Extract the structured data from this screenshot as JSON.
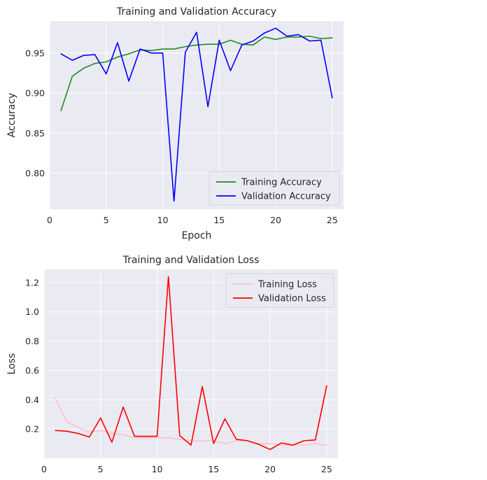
{
  "chart_data": [
    {
      "type": "line",
      "title": "Training and Validation Accuracy",
      "xlabel": "Epoch",
      "ylabel": "Accuracy",
      "xlim": [
        0,
        26
      ],
      "ylim": [
        0.755,
        0.99
      ],
      "xticks": [
        0,
        5,
        10,
        15,
        20,
        25
      ],
      "yticks": [
        0.8,
        0.85,
        0.9,
        0.95
      ],
      "ytick_labels": [
        "0.80",
        "0.85",
        "0.90",
        "0.95"
      ],
      "grid": true,
      "legend_position": "lower-right",
      "x": [
        1,
        2,
        3,
        4,
        5,
        6,
        7,
        8,
        9,
        10,
        11,
        12,
        13,
        14,
        15,
        16,
        17,
        18,
        19,
        20,
        21,
        22,
        23,
        24,
        25
      ],
      "series": [
        {
          "name": "Training Accuracy",
          "color": "#228b22",
          "values": [
            0.878,
            0.921,
            0.931,
            0.937,
            0.939,
            0.945,
            0.949,
            0.954,
            0.953,
            0.955,
            0.955,
            0.958,
            0.96,
            0.961,
            0.961,
            0.966,
            0.961,
            0.96,
            0.97,
            0.967,
            0.97,
            0.97,
            0.971,
            0.968,
            0.969
          ]
        },
        {
          "name": "Validation Accuracy",
          "color": "#0000ff",
          "values": [
            0.949,
            0.941,
            0.947,
            0.948,
            0.924,
            0.963,
            0.915,
            0.955,
            0.95,
            0.95,
            0.765,
            0.951,
            0.976,
            0.883,
            0.966,
            0.928,
            0.96,
            0.965,
            0.975,
            0.981,
            0.971,
            0.973,
            0.965,
            0.966,
            0.894
          ]
        }
      ]
    },
    {
      "type": "line",
      "title": "Training and Validation Loss",
      "xlabel": "",
      "ylabel": "Loss",
      "xlim": [
        0,
        26
      ],
      "ylim": [
        0.0,
        1.29
      ],
      "xticks": [
        0,
        5,
        10,
        15,
        20,
        25
      ],
      "yticks": [
        0.2,
        0.4,
        0.6,
        0.8,
        1.0,
        1.2
      ],
      "ytick_labels": [
        "0.2",
        "0.4",
        "0.6",
        "0.8",
        "1.0",
        "1.2"
      ],
      "grid": true,
      "legend_position": "top-right",
      "x": [
        1,
        2,
        3,
        4,
        5,
        6,
        7,
        8,
        9,
        10,
        11,
        12,
        13,
        14,
        15,
        16,
        17,
        18,
        19,
        20,
        21,
        22,
        23,
        24,
        25
      ],
      "series": [
        {
          "name": "Training Loss",
          "color": "#ffc0cb",
          "values": [
            0.41,
            0.25,
            0.21,
            0.18,
            0.19,
            0.17,
            0.16,
            0.14,
            0.14,
            0.14,
            0.14,
            0.13,
            0.12,
            0.12,
            0.12,
            0.1,
            0.12,
            0.12,
            0.1,
            0.1,
            0.09,
            0.09,
            0.09,
            0.1,
            0.09
          ]
        },
        {
          "name": "Validation Loss",
          "color": "#ff0000",
          "values": [
            0.19,
            0.185,
            0.17,
            0.145,
            0.275,
            0.11,
            0.35,
            0.15,
            0.15,
            0.15,
            1.24,
            0.155,
            0.09,
            0.49,
            0.1,
            0.27,
            0.13,
            0.12,
            0.095,
            0.06,
            0.105,
            0.09,
            0.12,
            0.125,
            0.495
          ]
        }
      ]
    }
  ]
}
